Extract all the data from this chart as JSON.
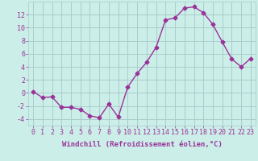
{
  "x": [
    0,
    1,
    2,
    3,
    4,
    5,
    6,
    7,
    8,
    9,
    10,
    11,
    12,
    13,
    14,
    15,
    16,
    17,
    18,
    19,
    20,
    21,
    22,
    23
  ],
  "y": [
    0.2,
    -0.7,
    -0.6,
    -2.2,
    -2.2,
    -2.5,
    -3.5,
    -3.8,
    -1.7,
    -3.7,
    0.9,
    3.0,
    4.7,
    7.0,
    11.2,
    11.5,
    13.0,
    13.2,
    12.3,
    10.5,
    7.8,
    5.2,
    4.0,
    5.3
  ],
  "line_color": "#993399",
  "marker": "D",
  "markersize": 2.5,
  "linewidth": 1.0,
  "bg_color": "#cceee8",
  "grid_color": "#aacccc",
  "label_color": "#993399",
  "xlabel": "Windchill (Refroidissement éolien,°C)",
  "xlim": [
    -0.5,
    23.5
  ],
  "ylim": [
    -5,
    14
  ],
  "yticks": [
    -4,
    -2,
    0,
    2,
    4,
    6,
    8,
    10,
    12
  ],
  "xticks": [
    0,
    1,
    2,
    3,
    4,
    5,
    6,
    7,
    8,
    9,
    10,
    11,
    12,
    13,
    14,
    15,
    16,
    17,
    18,
    19,
    20,
    21,
    22,
    23
  ],
  "xtick_labels": [
    "0",
    "1",
    "2",
    "3",
    "4",
    "5",
    "6",
    "7",
    "8",
    "9",
    "10",
    "11",
    "12",
    "13",
    "14",
    "15",
    "16",
    "17",
    "18",
    "19",
    "20",
    "21",
    "22",
    "23"
  ],
  "label_fontsize": 6.5,
  "tick_fontsize": 6.0
}
